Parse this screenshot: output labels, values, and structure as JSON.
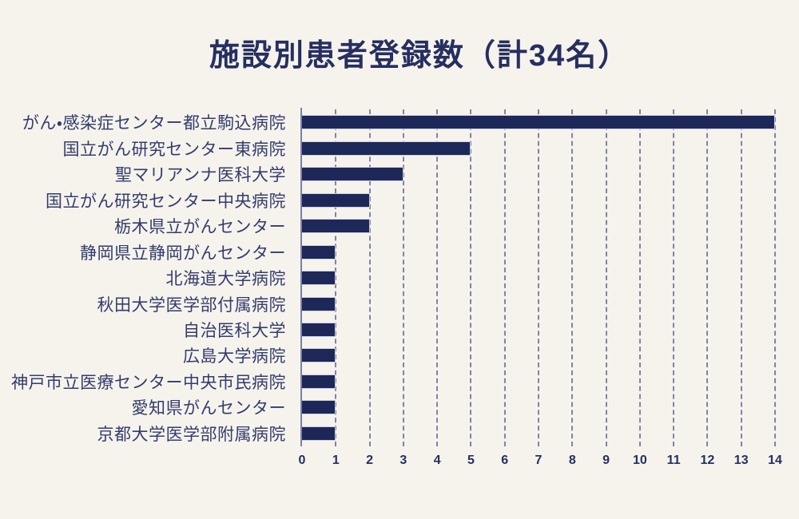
{
  "page": {
    "background_color": "#f6f3ed"
  },
  "title": {
    "text": "施設別患者登録数（計34名）",
    "color": "#262f60"
  },
  "chart_data": {
    "type": "bar",
    "orientation": "horizontal",
    "title": "施設別患者登録数（計34名）",
    "total": 34,
    "categories": [
      "がん・感染症センター都立駒込病院",
      "国立がん研究センター東病院",
      "聖マリアンナ医科大学",
      "国立がん研究センター中央病院",
      "栃木県立がんセンター",
      "静岡県立静岡がんセンター",
      "北海道大学病院",
      "秋田大学医学部付属病院",
      "自治医科大学",
      "広島大学病院",
      "神戸市立医療センター中央市民病院",
      "愛知県がんセンター",
      "京都大学医学部附属病院"
    ],
    "values": [
      14,
      5,
      3,
      2,
      2,
      1,
      1,
      1,
      1,
      1,
      1,
      1,
      1
    ],
    "xlabel": "",
    "ylabel": "",
    "xlim": [
      0,
      14
    ],
    "xticks": [
      "0",
      "1",
      "2",
      "3",
      "4",
      "5",
      "6",
      "7",
      "8",
      "9",
      "10",
      "11",
      "12",
      "13",
      "14"
    ],
    "grid": "vertical-dashed",
    "legend_position": "none",
    "colors": {
      "bar_fill": "#1e2858",
      "bar_border": "#ccd0df",
      "gridline": "#3e487d",
      "axis_line": "#7a81a6",
      "tick_label": "#262f60",
      "category_label": "#333c6d"
    }
  }
}
